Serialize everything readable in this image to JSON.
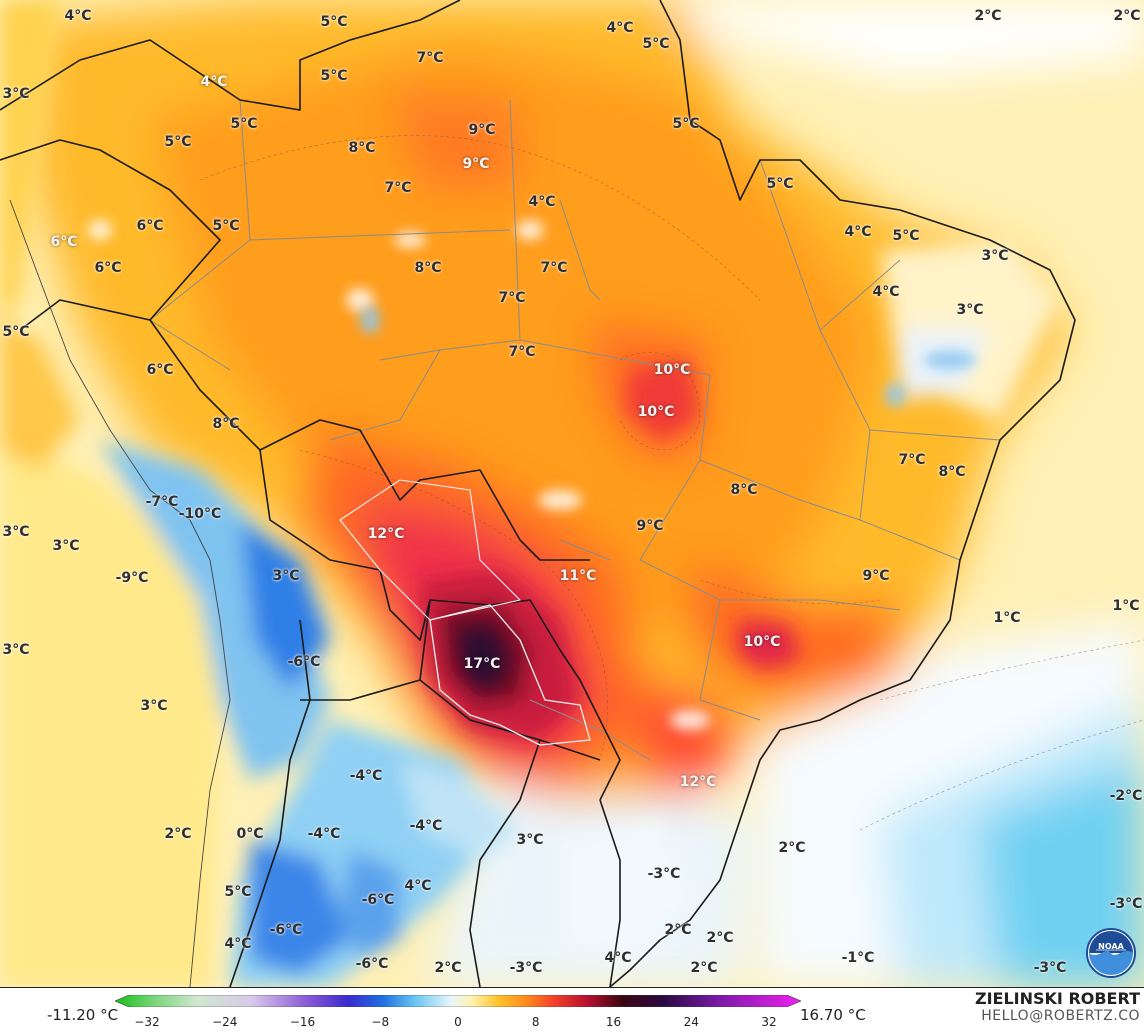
{
  "map": {
    "labels": [
      {
        "text": "4°C"
      },
      {
        "text": "5°C"
      },
      {
        "text": "5°C"
      },
      {
        "text": "7°C"
      },
      {
        "text": "4°C"
      },
      {
        "text": "5°C"
      },
      {
        "text": "2°C"
      },
      {
        "text": "2°C"
      },
      {
        "text": "3°C"
      },
      {
        "text": "4°C"
      },
      {
        "text": "5°C"
      },
      {
        "text": "5°C"
      },
      {
        "text": "8°C"
      },
      {
        "text": "9°C"
      },
      {
        "text": "9°C"
      },
      {
        "text": "5°C"
      },
      {
        "text": "7°C"
      },
      {
        "text": "5°C"
      },
      {
        "text": "4°C"
      },
      {
        "text": "6°C"
      },
      {
        "text": "5°C"
      },
      {
        "text": "6°C"
      },
      {
        "text": "6°C"
      },
      {
        "text": "8°C"
      },
      {
        "text": "7°C"
      },
      {
        "text": "7°C"
      },
      {
        "text": "4°C"
      },
      {
        "text": "5°C"
      },
      {
        "text": "3°C"
      },
      {
        "text": "3°C"
      },
      {
        "text": "4°C"
      },
      {
        "text": "5°C"
      },
      {
        "text": "7°C"
      },
      {
        "text": "6°C"
      },
      {
        "text": "10°C"
      },
      {
        "text": "10°C"
      },
      {
        "text": "8°C"
      },
      {
        "text": "7°C"
      },
      {
        "text": "8°C"
      },
      {
        "text": "8°C"
      },
      {
        "text": "-7°C"
      },
      {
        "text": "-10°C"
      },
      {
        "text": "9°C"
      },
      {
        "text": "3°C"
      },
      {
        "text": "12°C"
      },
      {
        "text": "3°C"
      },
      {
        "text": "-9°C"
      },
      {
        "text": "11°C"
      },
      {
        "text": "3°C"
      },
      {
        "text": "9°C"
      },
      {
        "text": "1°C"
      },
      {
        "text": "1°C"
      },
      {
        "text": "10°C"
      },
      {
        "text": "3°C"
      },
      {
        "text": "-6°C"
      },
      {
        "text": "17°C"
      },
      {
        "text": "3°C"
      },
      {
        "text": "-4°C"
      },
      {
        "text": "12°C"
      },
      {
        "text": "-2°C"
      },
      {
        "text": "2°C"
      },
      {
        "text": "0°C"
      },
      {
        "text": "-4°C"
      },
      {
        "text": "-4°C"
      },
      {
        "text": "3°C"
      },
      {
        "text": "2°C"
      },
      {
        "text": "-3°C"
      },
      {
        "text": "4°C"
      },
      {
        "text": "5°C"
      },
      {
        "text": "-6°C"
      },
      {
        "text": "-3°C"
      },
      {
        "text": "2°C"
      },
      {
        "text": "2°C"
      },
      {
        "text": "4°C"
      },
      {
        "text": "-6°C"
      },
      {
        "text": "-6°C"
      },
      {
        "text": "2°C"
      },
      {
        "text": "-3°C"
      },
      {
        "text": "4°C"
      },
      {
        "text": "2°C"
      },
      {
        "text": "-1°C"
      },
      {
        "text": "-3°C"
      }
    ]
  },
  "colorbar": {
    "min_label": "-11.20 °C",
    "max_label": "16.70 °C",
    "ticks": [
      "−32",
      "−24",
      "−16",
      "−8",
      "0",
      "8",
      "16",
      "24",
      "32"
    ]
  },
  "credit": {
    "author": "ZIELINSKI ROBERT",
    "email": "HELLO@ROBERTZ.CO"
  },
  "logo": {
    "text": "NOAA"
  }
}
